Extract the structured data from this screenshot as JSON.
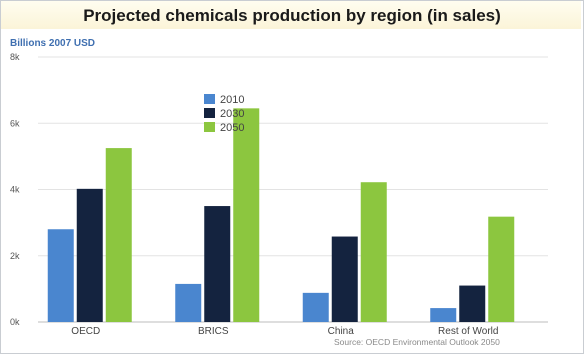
{
  "chart_data": {
    "type": "bar",
    "title": "Projected chemicals production by region (in sales)",
    "ylabel": "Billions 2007 USD",
    "xlabel": "",
    "ylim": [
      0,
      8000
    ],
    "yticks": [
      {
        "value": 0,
        "label": "0k"
      },
      {
        "value": 2000,
        "label": "2k"
      },
      {
        "value": 4000,
        "label": "4k"
      },
      {
        "value": 6000,
        "label": "6k"
      },
      {
        "value": 8000,
        "label": "8k"
      }
    ],
    "categories": [
      "OECD",
      "BRICS",
      "China",
      "Rest of World"
    ],
    "series": [
      {
        "name": "2010",
        "color": "#4a86cf",
        "values": [
          2800,
          1150,
          880,
          420
        ]
      },
      {
        "name": "2030",
        "color": "#14233f",
        "values": [
          4020,
          3500,
          2580,
          1100
        ]
      },
      {
        "name": "2050",
        "color": "#8cc63f",
        "values": [
          5250,
          6450,
          4220,
          3180
        ]
      }
    ],
    "legend_position": "top-center",
    "grid": true,
    "source": "Source: OECD Environmental Outlook 2050"
  }
}
